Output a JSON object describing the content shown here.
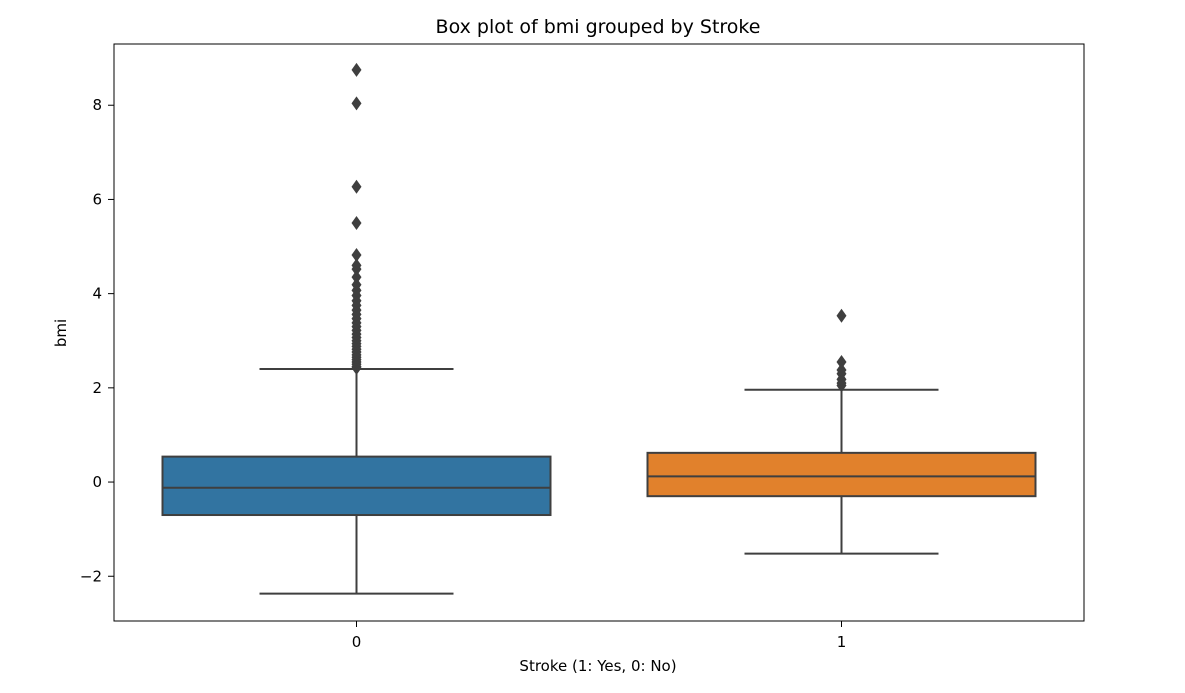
{
  "chart_data": {
    "type": "box",
    "title": "Box plot of bmi grouped by Stroke",
    "xlabel": "Stroke (1: Yes, 0: No)",
    "ylabel": "bmi",
    "ylim": [
      -2.95,
      9.3
    ],
    "yticks": [
      -2,
      0,
      2,
      4,
      6,
      8
    ],
    "ytick_labels": [
      "−2",
      "0",
      "2",
      "4",
      "6",
      "8"
    ],
    "grid": false,
    "colors": {
      "box_0": "#3274A1",
      "box_1": "#E1812C",
      "line": "#3f3f3f"
    },
    "categories": [
      "0",
      "1"
    ],
    "boxes": [
      {
        "category": "0",
        "whisker_low": -2.37,
        "q1": -0.7,
        "median": -0.12,
        "q3": 0.54,
        "whisker_high": 2.4,
        "outliers": [
          2.42,
          2.45,
          2.5,
          2.55,
          2.6,
          2.65,
          2.7,
          2.76,
          2.82,
          2.88,
          2.94,
          3.0,
          3.07,
          3.14,
          3.22,
          3.3,
          3.38,
          3.47,
          3.56,
          3.65,
          3.75,
          3.85,
          3.96,
          4.07,
          4.19,
          4.35,
          4.52,
          4.6,
          4.82,
          5.5,
          6.27,
          8.04,
          8.75
        ]
      },
      {
        "category": "1",
        "whisker_low": -1.52,
        "q1": -0.3,
        "median": 0.12,
        "q3": 0.62,
        "whisker_high": 1.96,
        "outliers": [
          2.05,
          2.1,
          2.18,
          2.3,
          2.38,
          2.55,
          3.53
        ]
      }
    ]
  }
}
